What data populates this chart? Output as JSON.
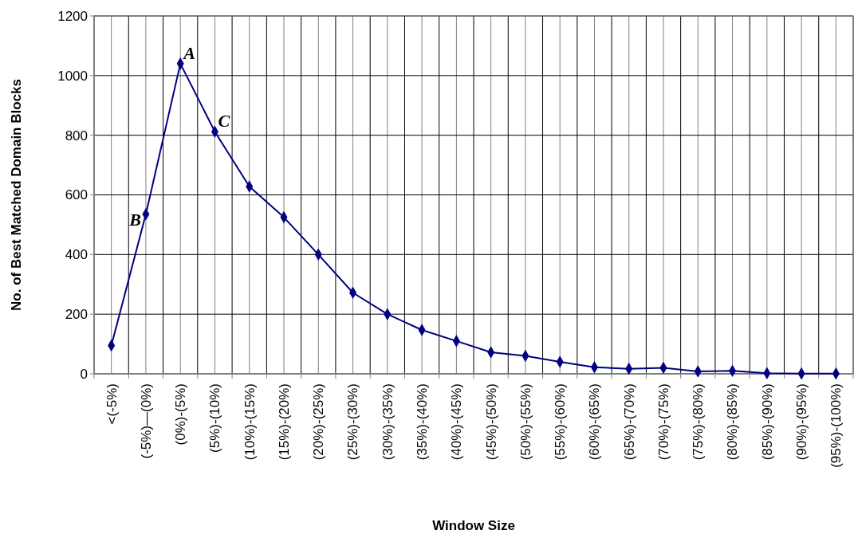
{
  "chart_data": {
    "type": "line",
    "xlabel": "Window Size",
    "ylabel": "No. of Best Matched Domain Blocks",
    "categories": [
      "<(-5%)",
      "(-5%)—(0%)",
      "(0%)-(5%)",
      "(5%)-(10%)",
      "(10%)-(15%)",
      "(15%)-(20%)",
      "(20%)-(25%)",
      "(25%)-(30%)",
      "(30%)-(35%)",
      "(35%)-(40%)",
      "(40%)-(45%)",
      "(45%)-(50%)",
      "(50%)-(55%)",
      "(55%)-(60%)",
      "(60%)-(65%)",
      "(65%)-(70%)",
      "(70%)-(75%)",
      "(75%)-(80%)",
      "(80%)-(85%)",
      "(85%)-(90%)",
      "(90%)-(95%)",
      "(95%)-(100%)"
    ],
    "series": [
      {
        "color": "#000080",
        "values": [
          95,
          535,
          1040,
          812,
          628,
          525,
          400,
          272,
          200,
          147,
          110,
          72,
          60,
          40,
          22,
          17,
          20,
          8,
          10,
          2,
          1,
          1
        ]
      }
    ],
    "ylim": [
      0,
      1200
    ],
    "yticks": [
      0,
      200,
      400,
      600,
      800,
      1000,
      1200
    ],
    "grid": true,
    "marker": "diamond",
    "annotations": [
      {
        "text": "A",
        "x": "(0%)-(5%)",
        "y": 1040
      },
      {
        "text": "B",
        "x": "(-5%)—(0%)",
        "y": 535
      },
      {
        "text": "C",
        "x": "(5%)-(10%)",
        "y": 812
      }
    ]
  }
}
